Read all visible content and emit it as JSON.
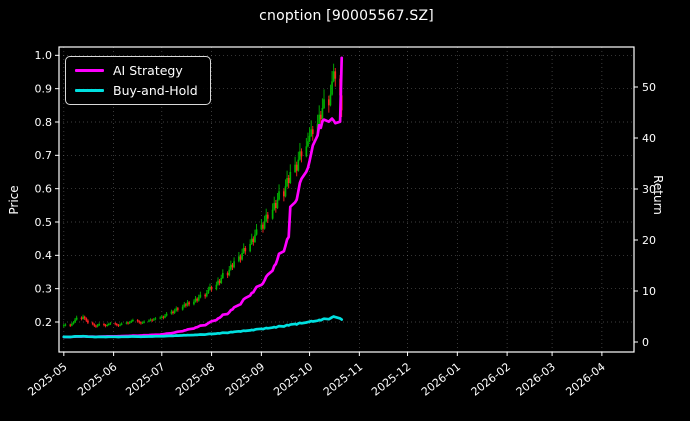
{
  "title": "cnoption [90005567.SZ]",
  "legend": {
    "items": [
      {
        "label": "AI Strategy",
        "color": "#ff00ff"
      },
      {
        "label": "Buy-and-Hold",
        "color": "#00e0e0"
      }
    ]
  },
  "axes": {
    "left": {
      "label": "Price",
      "ticks": [
        "0.2",
        "0.3",
        "0.4",
        "0.5",
        "0.6",
        "0.7",
        "0.8",
        "0.9",
        "1.0"
      ],
      "range": [
        0.11,
        1.025
      ]
    },
    "right": {
      "label": "Return",
      "ticks": [
        "0",
        "10",
        "20",
        "30",
        "40",
        "50"
      ],
      "range": [
        -1.96,
        57.84
      ]
    },
    "x": {
      "start_date": "2025-05-01",
      "range_days": [
        -3,
        355
      ],
      "tick_day_offsets": [
        0,
        31,
        61,
        92,
        123,
        153,
        184,
        214,
        245,
        276,
        304,
        335
      ],
      "tick_labels": [
        "2025-05",
        "2025-06",
        "2025-07",
        "2025-08",
        "2025-09",
        "2025-10",
        "2025-11",
        "2025-12",
        "2026-01",
        "2026-02",
        "2026-03",
        "2026-04"
      ]
    }
  },
  "chart_data": {
    "type": "candlestick+line",
    "title": "cnoption [90005567.SZ]",
    "grid": true,
    "legend_position": "upper left",
    "colors": {
      "up": "#00b300",
      "down": "#ff2121",
      "text": "#ffffff",
      "grid": "#9a9a9a",
      "background": "#000000"
    },
    "x_day_offsets": [
      0,
      1,
      4,
      5,
      6,
      7,
      8,
      11,
      12,
      13,
      14,
      15,
      18,
      19,
      20,
      21,
      22,
      25,
      26,
      27,
      28,
      29,
      32,
      33,
      34,
      35,
      36,
      39,
      40,
      41,
      42,
      43,
      46,
      47,
      48,
      49,
      50,
      53,
      54,
      55,
      56,
      57,
      60,
      61,
      62,
      63,
      64,
      67,
      68,
      69,
      70,
      71,
      74,
      75,
      76,
      77,
      78,
      81,
      82,
      83,
      84,
      85,
      88,
      89,
      90,
      91,
      92,
      95,
      96,
      97,
      98,
      99,
      102,
      103,
      104,
      105,
      106,
      109,
      110,
      111,
      112,
      113,
      116,
      117,
      118,
      119,
      120,
      123,
      124,
      125,
      126,
      127,
      130,
      131,
      132,
      133,
      134,
      137,
      138,
      139,
      140,
      141,
      144,
      145,
      146,
      147,
      148,
      151,
      152,
      153,
      154,
      155,
      158,
      159,
      160,
      161,
      162,
      165,
      166,
      167,
      168,
      169,
      172,
      173
    ],
    "candles": [
      [
        0.188,
        0.194,
        0.183,
        0.19
      ],
      [
        0.19,
        0.196,
        0.187,
        0.192
      ],
      [
        0.192,
        0.195,
        0.185,
        0.189
      ],
      [
        0.189,
        0.198,
        0.187,
        0.194
      ],
      [
        0.194,
        0.203,
        0.192,
        0.199
      ],
      [
        0.199,
        0.212,
        0.197,
        0.207
      ],
      [
        0.207,
        0.219,
        0.204,
        0.213
      ],
      [
        0.213,
        0.217,
        0.205,
        0.209
      ],
      [
        0.209,
        0.222,
        0.207,
        0.216
      ],
      [
        0.216,
        0.219,
        0.206,
        0.211
      ],
      [
        0.211,
        0.214,
        0.2,
        0.204
      ],
      [
        0.204,
        0.208,
        0.194,
        0.198
      ],
      [
        0.198,
        0.201,
        0.19,
        0.193
      ],
      [
        0.193,
        0.196,
        0.185,
        0.189
      ],
      [
        0.189,
        0.192,
        0.182,
        0.186
      ],
      [
        0.186,
        0.194,
        0.184,
        0.19
      ],
      [
        0.19,
        0.198,
        0.188,
        0.194
      ],
      [
        0.194,
        0.197,
        0.187,
        0.191
      ],
      [
        0.191,
        0.194,
        0.184,
        0.188
      ],
      [
        0.188,
        0.195,
        0.186,
        0.191
      ],
      [
        0.191,
        0.198,
        0.189,
        0.194
      ],
      [
        0.194,
        0.2,
        0.191,
        0.196
      ],
      [
        0.196,
        0.199,
        0.19,
        0.194
      ],
      [
        0.194,
        0.197,
        0.187,
        0.191
      ],
      [
        0.191,
        0.194,
        0.185,
        0.189
      ],
      [
        0.189,
        0.196,
        0.187,
        0.192
      ],
      [
        0.192,
        0.199,
        0.19,
        0.195
      ],
      [
        0.195,
        0.202,
        0.193,
        0.198
      ],
      [
        0.198,
        0.201,
        0.192,
        0.196
      ],
      [
        0.196,
        0.203,
        0.194,
        0.199
      ],
      [
        0.199,
        0.207,
        0.197,
        0.203
      ],
      [
        0.203,
        0.21,
        0.2,
        0.206
      ],
      [
        0.206,
        0.209,
        0.198,
        0.202
      ],
      [
        0.202,
        0.205,
        0.195,
        0.199
      ],
      [
        0.199,
        0.202,
        0.192,
        0.196
      ],
      [
        0.196,
        0.202,
        0.194,
        0.198
      ],
      [
        0.198,
        0.205,
        0.196,
        0.201
      ],
      [
        0.201,
        0.208,
        0.199,
        0.204
      ],
      [
        0.204,
        0.211,
        0.202,
        0.207
      ],
      [
        0.207,
        0.21,
        0.2,
        0.205
      ],
      [
        0.205,
        0.212,
        0.203,
        0.208
      ],
      [
        0.208,
        0.215,
        0.205,
        0.211
      ],
      [
        0.211,
        0.217,
        0.208,
        0.213
      ],
      [
        0.213,
        0.221,
        0.21,
        0.216
      ],
      [
        0.216,
        0.219,
        0.208,
        0.213
      ],
      [
        0.213,
        0.224,
        0.211,
        0.219
      ],
      [
        0.219,
        0.23,
        0.216,
        0.225
      ],
      [
        0.225,
        0.237,
        0.222,
        0.231
      ],
      [
        0.231,
        0.235,
        0.222,
        0.227
      ],
      [
        0.227,
        0.24,
        0.224,
        0.234
      ],
      [
        0.234,
        0.247,
        0.231,
        0.241
      ],
      [
        0.241,
        0.245,
        0.231,
        0.237
      ],
      [
        0.237,
        0.252,
        0.234,
        0.246
      ],
      [
        0.246,
        0.26,
        0.243,
        0.253
      ],
      [
        0.253,
        0.257,
        0.243,
        0.249
      ],
      [
        0.249,
        0.266,
        0.246,
        0.259
      ],
      [
        0.259,
        0.263,
        0.247,
        0.253
      ],
      [
        0.253,
        0.268,
        0.25,
        0.261
      ],
      [
        0.261,
        0.278,
        0.258,
        0.27
      ],
      [
        0.27,
        0.274,
        0.258,
        0.264
      ],
      [
        0.264,
        0.282,
        0.261,
        0.274
      ],
      [
        0.274,
        0.291,
        0.271,
        0.282
      ],
      [
        0.282,
        0.286,
        0.27,
        0.277
      ],
      [
        0.277,
        0.296,
        0.274,
        0.287
      ],
      [
        0.287,
        0.306,
        0.284,
        0.297
      ],
      [
        0.297,
        0.315,
        0.294,
        0.305
      ],
      [
        0.305,
        0.309,
        0.291,
        0.298
      ],
      [
        0.298,
        0.321,
        0.295,
        0.312
      ],
      [
        0.312,
        0.334,
        0.309,
        0.324
      ],
      [
        0.324,
        0.329,
        0.31,
        0.317
      ],
      [
        0.317,
        0.342,
        0.314,
        0.332
      ],
      [
        0.332,
        0.358,
        0.329,
        0.347
      ],
      [
        0.347,
        0.352,
        0.332,
        0.34
      ],
      [
        0.34,
        0.368,
        0.337,
        0.357
      ],
      [
        0.357,
        0.384,
        0.354,
        0.372
      ],
      [
        0.372,
        0.377,
        0.356,
        0.364
      ],
      [
        0.364,
        0.394,
        0.361,
        0.382
      ],
      [
        0.382,
        0.41,
        0.379,
        0.397
      ],
      [
        0.397,
        0.403,
        0.378,
        0.387
      ],
      [
        0.387,
        0.42,
        0.384,
        0.407
      ],
      [
        0.407,
        0.436,
        0.404,
        0.422
      ],
      [
        0.422,
        0.428,
        0.402,
        0.412
      ],
      [
        0.412,
        0.448,
        0.409,
        0.434
      ],
      [
        0.434,
        0.465,
        0.431,
        0.45
      ],
      [
        0.45,
        0.457,
        0.429,
        0.44
      ],
      [
        0.44,
        0.477,
        0.437,
        0.462
      ],
      [
        0.462,
        0.494,
        0.459,
        0.478
      ],
      [
        0.478,
        0.509,
        0.475,
        0.492
      ],
      [
        0.492,
        0.499,
        0.468,
        0.48
      ],
      [
        0.48,
        0.519,
        0.477,
        0.502
      ],
      [
        0.502,
        0.54,
        0.499,
        0.522
      ],
      [
        0.522,
        0.53,
        0.497,
        0.51
      ],
      [
        0.51,
        0.556,
        0.507,
        0.537
      ],
      [
        0.537,
        0.576,
        0.534,
        0.557
      ],
      [
        0.557,
        0.566,
        0.528,
        0.542
      ],
      [
        0.542,
        0.587,
        0.539,
        0.567
      ],
      [
        0.567,
        0.613,
        0.564,
        0.592
      ],
      [
        0.592,
        0.601,
        0.562,
        0.577
      ],
      [
        0.577,
        0.628,
        0.574,
        0.607
      ],
      [
        0.607,
        0.654,
        0.604,
        0.632
      ],
      [
        0.632,
        0.641,
        0.601,
        0.617
      ],
      [
        0.617,
        0.673,
        0.614,
        0.65
      ],
      [
        0.65,
        0.696,
        0.647,
        0.672
      ],
      [
        0.672,
        0.681,
        0.637,
        0.654
      ],
      [
        0.654,
        0.711,
        0.651,
        0.687
      ],
      [
        0.687,
        0.737,
        0.684,
        0.712
      ],
      [
        0.712,
        0.721,
        0.679,
        0.697
      ],
      [
        0.697,
        0.752,
        0.694,
        0.727
      ],
      [
        0.727,
        0.768,
        0.724,
        0.742
      ],
      [
        0.742,
        0.784,
        0.739,
        0.758
      ],
      [
        0.758,
        0.805,
        0.755,
        0.778
      ],
      [
        0.778,
        0.788,
        0.744,
        0.764
      ],
      [
        0.764,
        0.822,
        0.761,
        0.795
      ],
      [
        0.795,
        0.85,
        0.792,
        0.822
      ],
      [
        0.822,
        0.833,
        0.787,
        0.808
      ],
      [
        0.808,
        0.871,
        0.805,
        0.842
      ],
      [
        0.842,
        0.898,
        0.839,
        0.868
      ],
      [
        0.868,
        0.879,
        0.828,
        0.85
      ],
      [
        0.85,
        0.912,
        0.847,
        0.882
      ],
      [
        0.882,
        0.953,
        0.879,
        0.922
      ],
      [
        0.922,
        0.975,
        0.919,
        0.952
      ],
      [
        0.952,
        0.962,
        0.906,
        0.93
      ],
      [
        0.93,
        0.941,
        0.858,
        0.88
      ],
      [
        0.88,
        0.893,
        0.815,
        0.835
      ]
    ],
    "series": [
      {
        "name": "AI Strategy",
        "axis": "right",
        "color": "#ff00ff",
        "width": 2.7,
        "values": [
          1.0,
          1.0,
          1.01,
          1.02,
          1.04,
          1.06,
          1.08,
          1.07,
          1.1,
          1.09,
          1.08,
          1.06,
          1.05,
          1.04,
          1.03,
          1.04,
          1.06,
          1.07,
          1.08,
          1.09,
          1.11,
          1.12,
          1.12,
          1.12,
          1.13,
          1.14,
          1.16,
          1.18,
          1.17,
          1.19,
          1.22,
          1.25,
          1.24,
          1.26,
          1.28,
          1.3,
          1.33,
          1.36,
          1.38,
          1.4,
          1.42,
          1.44,
          1.46,
          1.5,
          1.53,
          1.58,
          1.65,
          1.72,
          1.78,
          1.85,
          1.95,
          2.02,
          2.12,
          2.25,
          2.32,
          2.45,
          2.52,
          2.65,
          2.82,
          2.9,
          3.05,
          3.22,
          3.3,
          3.5,
          3.7,
          3.9,
          4.05,
          4.3,
          4.6,
          4.75,
          5.0,
          5.35,
          5.5,
          5.85,
          6.25,
          6.4,
          6.8,
          7.25,
          7.4,
          7.9,
          8.4,
          8.6,
          9.1,
          9.6,
          9.75,
          10.3,
          10.8,
          11.2,
          11.5,
          12.1,
          12.8,
          13.2,
          14.0,
          14.9,
          15.3,
          16.2,
          17.3,
          17.8,
          18.9,
          20.1,
          20.6,
          26.5,
          27.4,
          27.9,
          29.5,
          31.2,
          32.0,
          33.4,
          34.2,
          35.5,
          37.0,
          38.5,
          40.5,
          42.5,
          42.0,
          43.3,
          43.6,
          43.2,
          43.5,
          43.8,
          43.4,
          42.9,
          43.2,
          55.7
        ]
      },
      {
        "name": "Buy-and-Hold",
        "axis": "right",
        "color": "#00e0e0",
        "width": 2.7,
        "values": [
          1.0,
          1.01,
          0.99,
          1.02,
          1.05,
          1.09,
          1.12,
          1.1,
          1.14,
          1.11,
          1.07,
          1.04,
          1.02,
          0.99,
          0.98,
          1.0,
          1.02,
          1.01,
          0.99,
          1.01,
          1.02,
          1.03,
          1.02,
          1.01,
          0.99,
          1.01,
          1.03,
          1.04,
          1.03,
          1.05,
          1.07,
          1.08,
          1.06,
          1.05,
          1.03,
          1.04,
          1.06,
          1.07,
          1.09,
          1.08,
          1.09,
          1.11,
          1.12,
          1.14,
          1.12,
          1.15,
          1.18,
          1.22,
          1.19,
          1.23,
          1.27,
          1.25,
          1.29,
          1.33,
          1.31,
          1.36,
          1.33,
          1.37,
          1.42,
          1.39,
          1.44,
          1.48,
          1.46,
          1.51,
          1.56,
          1.61,
          1.57,
          1.64,
          1.71,
          1.67,
          1.75,
          1.83,
          1.79,
          1.88,
          1.96,
          1.92,
          2.01,
          2.09,
          2.04,
          2.14,
          2.22,
          2.17,
          2.28,
          2.37,
          2.32,
          2.43,
          2.52,
          2.59,
          2.53,
          2.64,
          2.75,
          2.68,
          2.83,
          2.93,
          2.85,
          2.98,
          3.12,
          3.04,
          3.19,
          3.33,
          3.25,
          3.42,
          3.54,
          3.44,
          3.62,
          3.75,
          3.67,
          3.83,
          3.91,
          3.99,
          4.09,
          4.02,
          4.18,
          4.33,
          4.25,
          4.43,
          4.57,
          4.47,
          4.64,
          4.85,
          5.01,
          4.89,
          4.63,
          4.39
        ]
      }
    ]
  }
}
